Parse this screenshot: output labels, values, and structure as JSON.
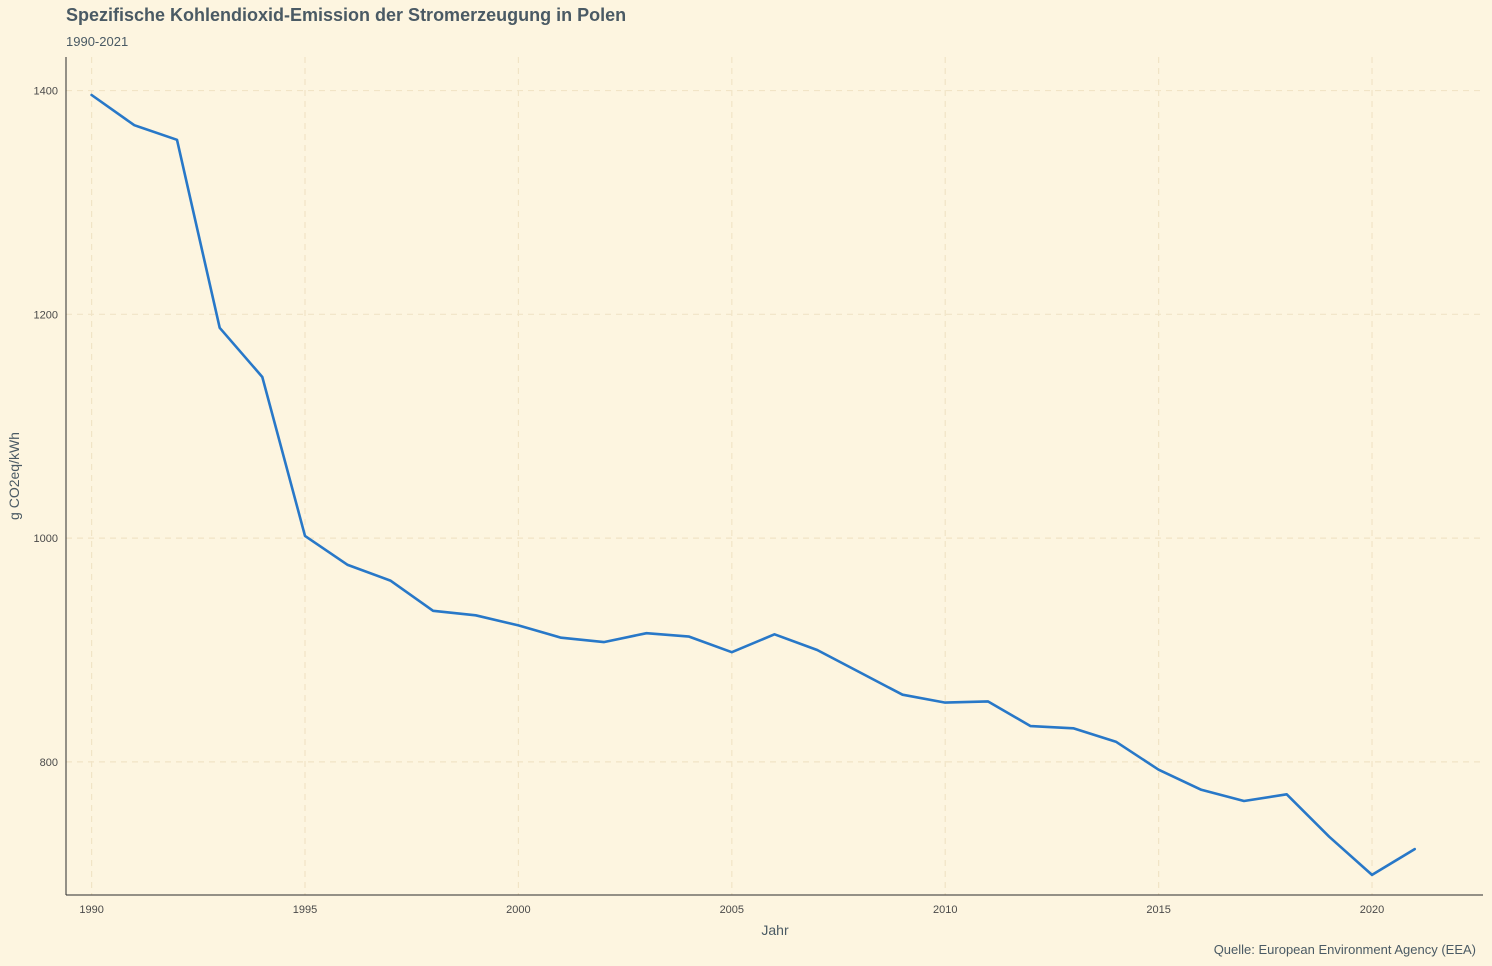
{
  "chart_data": {
    "type": "line",
    "title": "Spezifische Kohlendioxid-Emission der Stromerzeugung in Polen",
    "subtitle": "1990-2021",
    "caption": "Quelle: European Environment Agency (EEA)",
    "xlabel": "Jahr",
    "ylabel": "g CO2eq/kWh",
    "xlim": [
      1989.4,
      2022.6
    ],
    "ylim": [
      681,
      1430
    ],
    "x_ticks": [
      1990,
      1995,
      2000,
      2005,
      2010,
      2015,
      2020
    ],
    "y_ticks": [
      800,
      1000,
      1200,
      1400
    ],
    "grid": true,
    "line_color": "#2878c8",
    "series": [
      {
        "x": [
          1990,
          1991,
          1992,
          1993,
          1994,
          1995,
          1996,
          1997,
          1998,
          1999,
          2000,
          2001,
          2002,
          2003,
          2004,
          2005,
          2006,
          2007,
          2008,
          2009,
          2010,
          2011,
          2012,
          2013,
          2014,
          2015,
          2016,
          2017,
          2018,
          2019,
          2020,
          2021
        ],
        "values": [
          1396,
          1369,
          1356,
          1188,
          1144,
          1002,
          976,
          962,
          935,
          931,
          922,
          911,
          907,
          915,
          912,
          898,
          914,
          900,
          880,
          860,
          853,
          854,
          832,
          830,
          818,
          793,
          775,
          765,
          771,
          733,
          699,
          722
        ]
      }
    ]
  }
}
